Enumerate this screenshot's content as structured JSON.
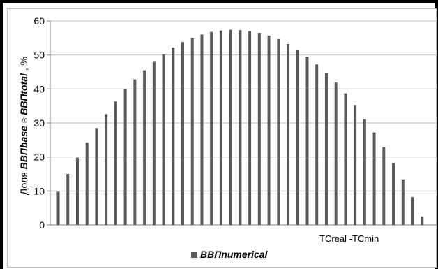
{
  "colors": {
    "bar": "#595959",
    "grid": "#bdbdbd",
    "axis": "#808080",
    "frame": "#000000"
  },
  "chart_data": {
    "type": "bar",
    "title": "",
    "xlabel": "TCreal -TCmin",
    "ylabel": {
      "prefix": "Доля ",
      "term1": "ВВПbase",
      "middle": " в ",
      "term2": "ВВПtotal",
      "suffix": " , %"
    },
    "ylim": [
      0,
      60
    ],
    "yticks": [
      "0",
      "10",
      "20",
      "30",
      "40",
      "50",
      "60"
    ],
    "grid": true,
    "legend": {
      "position": "bottom",
      "entries": [
        "ВВПnumerical"
      ]
    },
    "series": [
      {
        "name": "ВВПnumerical",
        "values": [
          9.8,
          15.0,
          19.8,
          24.2,
          28.5,
          32.6,
          36.3,
          39.9,
          42.8,
          45.5,
          48.0,
          50.1,
          52.2,
          53.8,
          55.0,
          56.0,
          56.8,
          57.2,
          57.4,
          57.3,
          57.0,
          56.5,
          55.7,
          54.7,
          53.2,
          51.4,
          49.5,
          47.2,
          44.7,
          41.9,
          38.7,
          35.3,
          31.1,
          27.2,
          22.9,
          18.2,
          13.4,
          8.2,
          2.5
        ]
      }
    ]
  }
}
